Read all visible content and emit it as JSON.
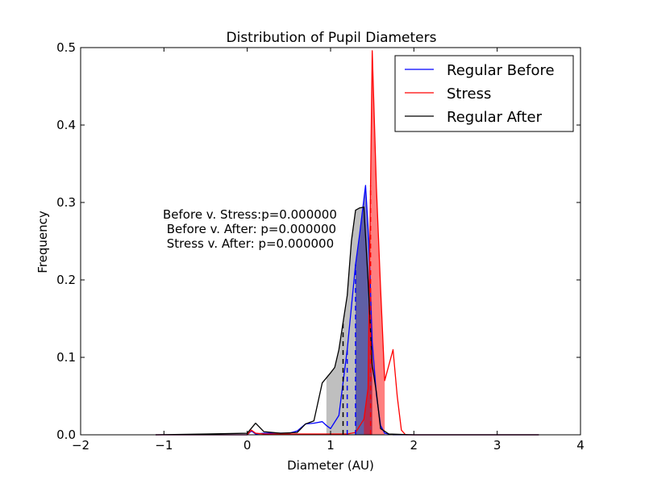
{
  "chart_data": {
    "type": "line",
    "title": "Distribution of Pupil Diameters",
    "xlabel": "Diameter (AU)",
    "ylabel": "Frequency",
    "xlim": [
      -2,
      4
    ],
    "ylim": [
      0,
      0.5
    ],
    "x_ticks": [
      -2,
      -1,
      0,
      1,
      2,
      3,
      4
    ],
    "x_tick_labels": [
      "−2",
      "−1",
      "0",
      "1",
      "2",
      "3",
      "4"
    ],
    "y_ticks": [
      0,
      0.1,
      0.2,
      0.3,
      0.4,
      0.5
    ],
    "y_tick_labels": [
      "0.0",
      "0.1",
      "0.2",
      "0.3",
      "0.4",
      "0.5"
    ],
    "legend_position": "top-right",
    "annotations": [
      "Before v. Stress:p=0.000000",
      " Before v. After: p=0.000000",
      " Stress v. After: p=0.000000"
    ],
    "series": [
      {
        "name": "Regular Before",
        "color": "#0000ff",
        "fill": "#00008b",
        "fill_opacity": 0.5,
        "fill_range": [
          1.3,
          1.5
        ],
        "dashed_marks": [
          1.2,
          1.3
        ],
        "x": [
          -1.1,
          0.0,
          0.05,
          0.1,
          0.2,
          0.3,
          0.5,
          0.6,
          0.7,
          0.8,
          0.9,
          0.95,
          1.0,
          1.1,
          1.2,
          1.3,
          1.35,
          1.42,
          1.46,
          1.5,
          1.55,
          1.6,
          1.65,
          1.7,
          1.75,
          3.5
        ],
        "y": [
          0,
          0,
          0.005,
          0.001,
          0.002,
          0.002,
          0.002,
          0.005,
          0.014,
          0.015,
          0.017,
          0.012,
          0.008,
          0.025,
          0.11,
          0.22,
          0.26,
          0.322,
          0.25,
          0.12,
          0.052,
          0.012,
          0.002,
          0.001,
          0,
          0
        ]
      },
      {
        "name": "Stress",
        "color": "#ff0000",
        "fill": "#ff0000",
        "fill_opacity": 0.5,
        "fill_range": [
          1.4,
          1.65
        ],
        "dashed_marks": [
          1.48
        ],
        "x": [
          -1.1,
          0.0,
          0.05,
          0.1,
          0.2,
          0.4,
          0.8,
          1.0,
          1.2,
          1.3,
          1.4,
          1.45,
          1.5,
          1.55,
          1.6,
          1.65,
          1.7,
          1.75,
          1.8,
          1.85,
          1.9,
          3.5
        ],
        "y": [
          0,
          0,
          0.006,
          0.002,
          0.001,
          0.001,
          0.001,
          0.001,
          0.001,
          0.003,
          0.02,
          0.06,
          0.496,
          0.32,
          0.19,
          0.07,
          0.09,
          0.11,
          0.05,
          0.006,
          0.0,
          0.0
        ]
      },
      {
        "name": "Regular After",
        "color": "#000000",
        "fill": "#808080",
        "fill_opacity": 0.5,
        "fill_range": [
          0.95,
          1.5
        ],
        "dashed_marks": [
          1.15
        ],
        "x": [
          -1.1,
          -0.5,
          0.0,
          0.1,
          0.2,
          0.4,
          0.6,
          0.7,
          0.8,
          0.9,
          1.0,
          1.05,
          1.1,
          1.2,
          1.25,
          1.3,
          1.35,
          1.4,
          1.45,
          1.5,
          1.55,
          1.6,
          1.7,
          2.0,
          3.5
        ],
        "y": [
          0,
          0.001,
          0.002,
          0.015,
          0.004,
          0.002,
          0.003,
          0.014,
          0.018,
          0.067,
          0.08,
          0.087,
          0.11,
          0.18,
          0.25,
          0.29,
          0.293,
          0.294,
          0.2,
          0.09,
          0.055,
          0.008,
          0.001,
          0,
          0
        ]
      }
    ]
  }
}
